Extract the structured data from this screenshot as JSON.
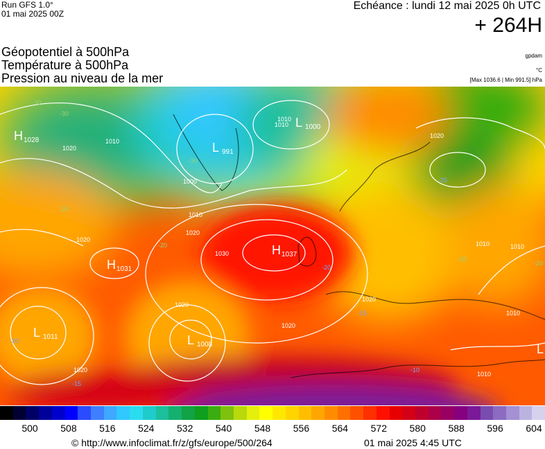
{
  "header": {
    "model_run": "Run GFS 1.0°",
    "run_date": "01 mai 2025 00Z",
    "echeance": "Echéance : lundi 12 mai 2025 0h UTC",
    "lead_time": "+ 264H",
    "layers": [
      "Géopotentiel à 500hPa",
      "Température à 500hPa",
      "Pression au niveau de la mer"
    ],
    "unit_gpdam": "gpdam",
    "unit_celsius": "°C",
    "pressure_range": "[Max 1036.6 | Min 991.5] hPa"
  },
  "map": {
    "pressure_centers": [
      {
        "type": "H",
        "value": "1028"
      },
      {
        "type": "L",
        "value": "1000"
      },
      {
        "type": "L",
        "value": "991"
      },
      {
        "type": "H",
        "value": "1031"
      },
      {
        "type": "H",
        "value": "1037"
      },
      {
        "type": "L",
        "value": "1011"
      },
      {
        "type": "L",
        "value": "1008"
      },
      {
        "type": "L",
        "value": ""
      }
    ],
    "isobar_labels": [
      "1020",
      "1010",
      "1010",
      "1000",
      "1010",
      "1020",
      "1020",
      "1030",
      "1020",
      "1020",
      "1020",
      "1020",
      "1010",
      "1010",
      "1010",
      "1020",
      "1010",
      "1010"
    ],
    "temp_labels": [
      "-30",
      "-30",
      "-20",
      "-30",
      "-20",
      "-20",
      "-25",
      "-20",
      "-20",
      "-15",
      "-20",
      "-10",
      "-15"
    ]
  },
  "colorbar": {
    "tick_labels": [
      "500",
      "508",
      "516",
      "524",
      "532",
      "540",
      "548",
      "556",
      "564",
      "572",
      "580",
      "588",
      "596",
      "604"
    ],
    "colors": [
      "#000000",
      "#000033",
      "#000066",
      "#00009a",
      "#0000cc",
      "#0000ff",
      "#2a4bff",
      "#3f7fff",
      "#3fa8ff",
      "#30c8ff",
      "#2adcf0",
      "#1ecccc",
      "#1bbf9c",
      "#15b070",
      "#11a345",
      "#0f9e1e",
      "#3aad10",
      "#7fc20e",
      "#b9d90c",
      "#e4ef0c",
      "#ffff00",
      "#ffe800",
      "#ffd400",
      "#ffbf00",
      "#ffa600",
      "#ff8c00",
      "#ff7000",
      "#ff5000",
      "#ff2f00",
      "#ff0f00",
      "#e80000",
      "#d40018",
      "#c0002c",
      "#ac0048",
      "#980064",
      "#860080",
      "#7a1a98",
      "#7a4cb0",
      "#8c6cc2",
      "#a490d2",
      "#bcb2e0",
      "#d6d2ee"
    ]
  },
  "footer": {
    "credit": "© http://www.infoclimat.fr/z/gfs/europe/500/264",
    "generated": "01 mai 2025  4:45 UTC"
  }
}
